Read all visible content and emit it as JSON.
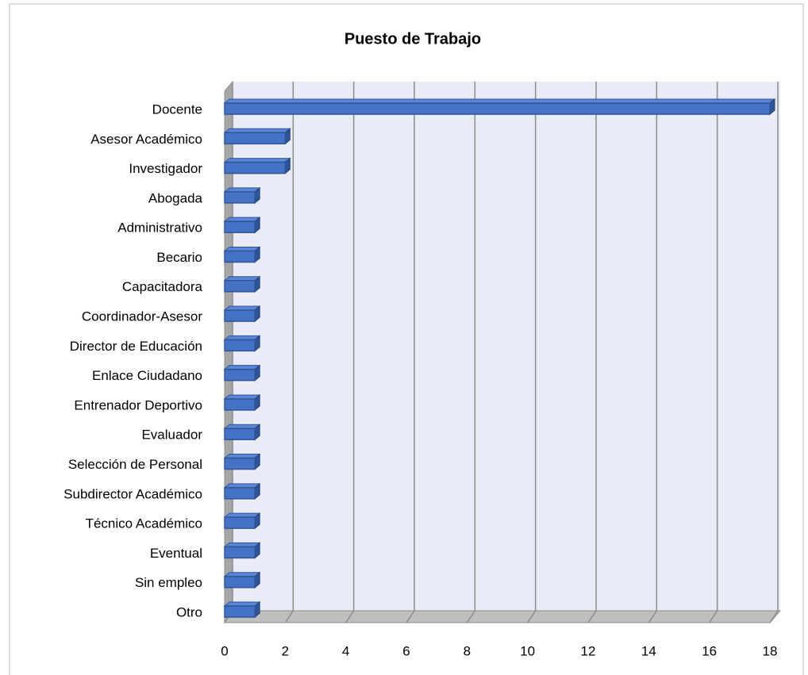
{
  "chart_data": {
    "type": "bar",
    "orientation": "horizontal",
    "title": "Puesto de Trabajo",
    "categories": [
      "Docente",
      "Asesor Académico",
      "Investigador",
      "Abogada",
      "Administrativo",
      "Becario",
      "Capacitadora",
      "Coordinador-Asesor",
      "Director de Educación",
      "Enlace Ciudadano",
      "Entrenador Deportivo",
      "Evaluador",
      "Selección de Personal",
      "Subdirector Académico",
      "Técnico Académico",
      "Eventual",
      "Sin empleo",
      "Otro"
    ],
    "values": [
      18,
      2,
      2,
      1,
      1,
      1,
      1,
      1,
      1,
      1,
      1,
      1,
      1,
      1,
      1,
      1,
      1,
      1
    ],
    "color": "#4472c4",
    "xlim": [
      0,
      18
    ],
    "xticks": [
      0,
      2,
      4,
      6,
      8,
      10,
      12,
      14,
      16,
      18
    ],
    "grid": true
  }
}
